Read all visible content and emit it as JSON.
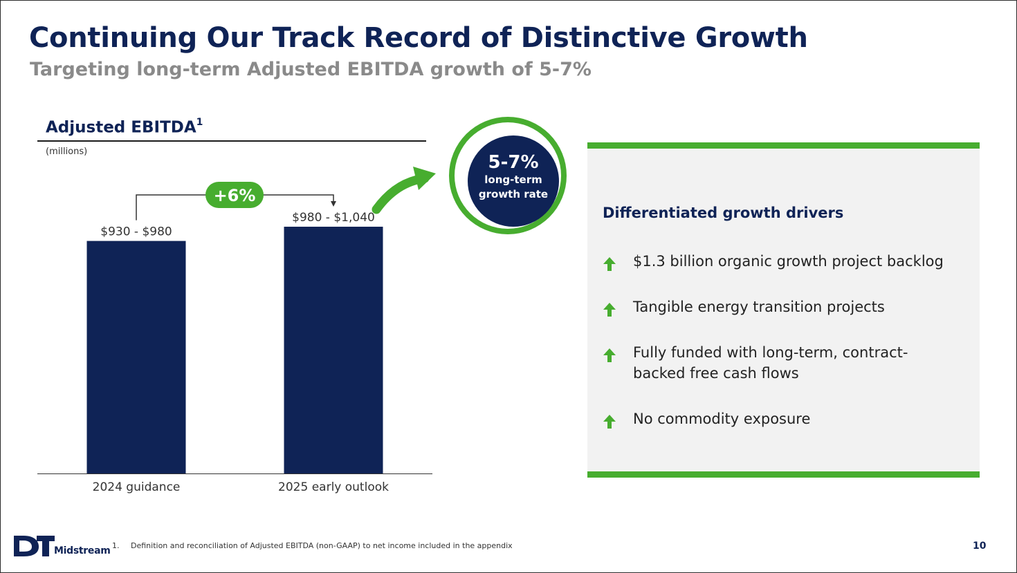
{
  "slide": {
    "title": "Continuing Our Track Record of Distinctive Growth",
    "subtitle": "Targeting long-term Adjusted EBITDA growth of 5-7%"
  },
  "chart_data": {
    "type": "bar",
    "title": "Adjusted EBITDA",
    "title_footnote": "1",
    "units": "(millions)",
    "categories": [
      "2024 guidance",
      "2025 early outlook"
    ],
    "values": [
      955,
      1010
    ],
    "ranges": [
      [
        930,
        980
      ],
      [
        980,
        1040
      ]
    ],
    "value_labels": [
      "$930 - $980",
      "$980 - $1,040"
    ],
    "ylim": [
      0,
      1040
    ],
    "annotation": "+6%",
    "colors": {
      "bar": "#0f2356",
      "accent": "#47ad2f"
    }
  },
  "badge": {
    "rate": "5-7%",
    "caption": "long-term growth rate"
  },
  "drivers": {
    "title": "Differentiated growth drivers",
    "items": [
      {
        "text": "$1.3 billion organic growth project backlog",
        "icon": "up-arrow-icon"
      },
      {
        "text": "Tangible energy transition projects",
        "icon": "up-arrow-icon"
      },
      {
        "text": "Fully funded with long-term, contract-backed free cash flows",
        "icon": "up-arrow-icon"
      },
      {
        "text": "No commodity exposure",
        "icon": "up-arrow-icon"
      }
    ]
  },
  "footer": {
    "logo_mark": "DT",
    "logo_text": "Midstream",
    "footnote_number": "1.",
    "footnote_text": "Definition and reconciliation of Adjusted EBITDA (non-GAAP) to net income included in the appendix",
    "page_number": "10"
  }
}
